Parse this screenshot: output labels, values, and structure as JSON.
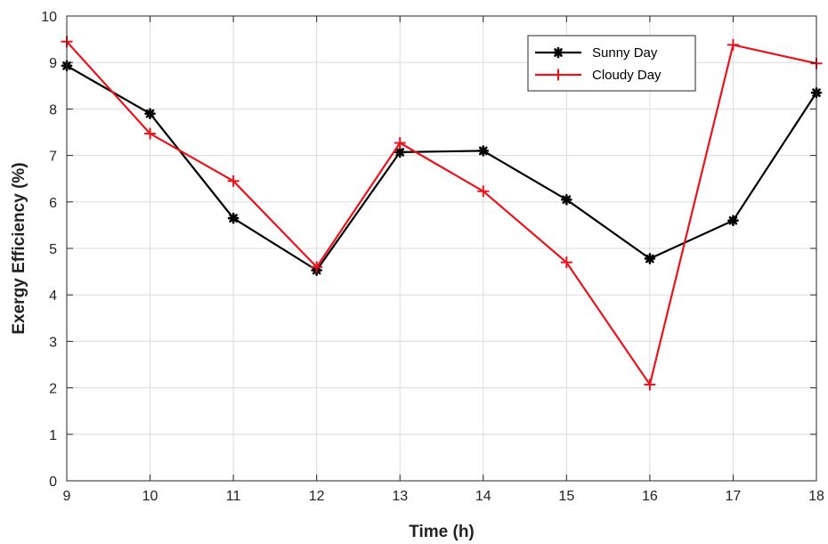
{
  "chart_data": {
    "type": "line",
    "title": "",
    "xlabel": "Time (h)",
    "ylabel": "Exergy Efficiency (%)",
    "xlim": [
      9,
      18
    ],
    "ylim": [
      0,
      10
    ],
    "xticks": [
      9,
      10,
      11,
      12,
      13,
      14,
      15,
      16,
      17,
      18
    ],
    "yticks": [
      0,
      1,
      2,
      3,
      4,
      5,
      6,
      7,
      8,
      9,
      10
    ],
    "grid": true,
    "legend_position": "top-right",
    "x": [
      9,
      10,
      11,
      12,
      13,
      14,
      15,
      16,
      17,
      18
    ],
    "series": [
      {
        "name": "Sunny Day",
        "color": "#000000",
        "marker": "asterisk",
        "values": [
          8.93,
          7.9,
          5.65,
          4.53,
          7.07,
          7.1,
          6.05,
          4.78,
          5.6,
          8.35
        ]
      },
      {
        "name": "Cloudy Day",
        "color": "#e8141c",
        "marker": "plus",
        "values": [
          9.45,
          7.47,
          6.45,
          4.6,
          7.27,
          6.23,
          4.7,
          2.07,
          9.38,
          8.98
        ]
      }
    ]
  }
}
